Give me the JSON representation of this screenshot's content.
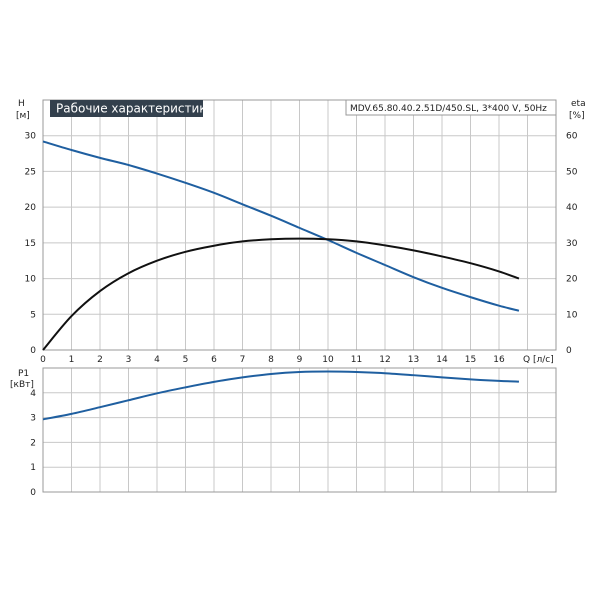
{
  "header": {
    "title": "Рабочие характеристики",
    "model": "MDV.65.80.40.2.51D/450.SL, 3*400 V, 50Hz"
  },
  "colors": {
    "grid": "#c8c8c8",
    "frame": "#999999",
    "curve_head": "#1f5fa0",
    "curve_eta": "#111111",
    "curve_power": "#1f5fa0",
    "title_bg": "#33404d"
  },
  "chart_data": [
    {
      "type": "line",
      "name": "performance",
      "x_axis": {
        "label": "Q",
        "unit": "[л/с]",
        "ticks": [
          0,
          1,
          2,
          3,
          4,
          5,
          6,
          7,
          8,
          9,
          10,
          11,
          12,
          13,
          14,
          15,
          16
        ],
        "range": [
          0,
          18
        ]
      },
      "y_left": {
        "label": "H",
        "unit": "[м]",
        "ticks": [
          0,
          5,
          10,
          15,
          20,
          25,
          30
        ],
        "range": [
          0,
          35
        ]
      },
      "y_right": {
        "label": "eta",
        "unit": "[%]",
        "ticks": [
          0,
          10,
          20,
          30,
          40,
          50,
          60
        ],
        "range": [
          0,
          70
        ]
      },
      "grid": true,
      "series": [
        {
          "axis": "left",
          "x": [
            0,
            1,
            2,
            3,
            4,
            5,
            6,
            7,
            8,
            9,
            10,
            11,
            12,
            13,
            14,
            15,
            16,
            16.7
          ],
          "values": [
            29.2,
            28.0,
            26.9,
            25.9,
            24.7,
            23.4,
            22.0,
            20.4,
            18.8,
            17.1,
            15.4,
            13.6,
            11.9,
            10.2,
            8.7,
            7.4,
            6.2,
            5.5
          ]
        },
        {
          "axis": "right",
          "x": [
            0,
            1,
            2,
            3,
            4,
            5,
            6,
            7,
            8,
            9,
            10,
            11,
            12,
            13,
            14,
            15,
            16,
            16.7
          ],
          "values": [
            0,
            9.5,
            16.5,
            21.5,
            25.0,
            27.5,
            29.2,
            30.4,
            31.0,
            31.2,
            31.0,
            30.4,
            29.3,
            27.9,
            26.2,
            24.3,
            22.0,
            20.0
          ]
        }
      ]
    },
    {
      "type": "line",
      "name": "power",
      "x_axis": {
        "range": [
          0,
          18
        ]
      },
      "y_left": {
        "label": "P1",
        "unit": "[кВт]",
        "ticks": [
          0,
          1,
          2,
          3,
          4
        ],
        "range": [
          0,
          5
        ]
      },
      "grid": true,
      "series": [
        {
          "axis": "left",
          "x": [
            0,
            1,
            2,
            3,
            4,
            5,
            6,
            7,
            8,
            9,
            10,
            11,
            12,
            13,
            14,
            15,
            16,
            16.7
          ],
          "values": [
            2.93,
            3.15,
            3.42,
            3.7,
            3.98,
            4.22,
            4.44,
            4.62,
            4.76,
            4.84,
            4.86,
            4.84,
            4.79,
            4.71,
            4.62,
            4.54,
            4.48,
            4.45
          ]
        }
      ]
    }
  ]
}
